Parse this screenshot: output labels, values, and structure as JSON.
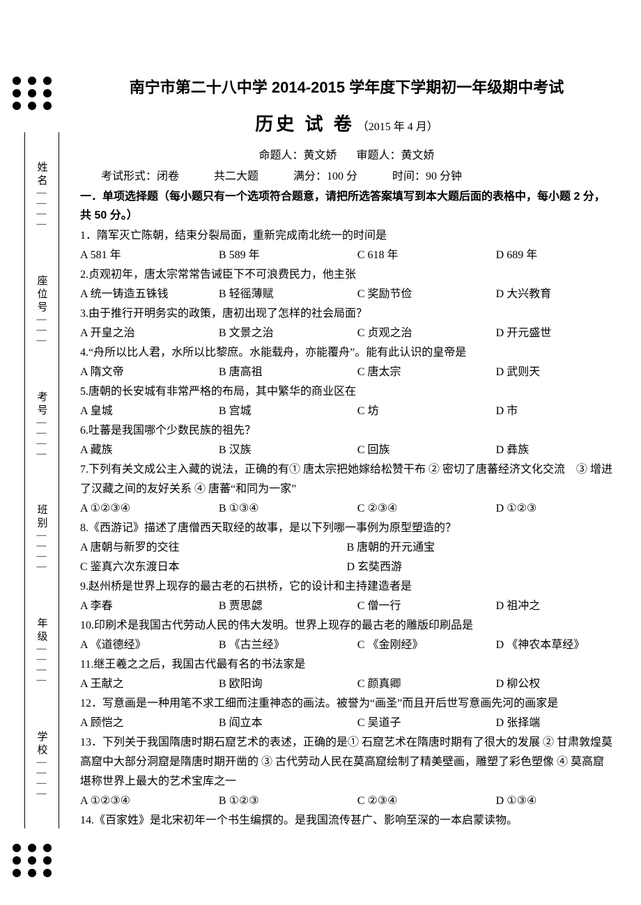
{
  "title": "南宁市第二十八中学 2014-2015 学年度下学期初一年级期中考试",
  "subtitle": "历史 试 卷",
  "subtitle_date": "（2015 年 4 月）",
  "authors": {
    "setter_label": "命题人：",
    "setter_name": "黄文娇",
    "reviewer_label": "审题人：",
    "reviewer_name": "黄文娇"
  },
  "exam_info": {
    "format": "考试形式：闭卷",
    "sections": "共二大题",
    "full_marks": "满分：100 分",
    "duration": "时间：90 分钟"
  },
  "section_header": "一．单项选择题（每小题只有一个选项符合题意，请把所选答案填写到本大题后面的表格中，每小题 2 分，共 50 分。）",
  "margin_labels": [
    "学校",
    "年级",
    "班别",
    "考号",
    "座位号",
    "姓名"
  ],
  "questions": [
    {
      "stem": "1．隋军灭亡陈朝，结束分裂局面，重新完成南北统一的时间是",
      "opts": [
        "A 581 年",
        "B 589 年",
        "C 618 年",
        "D 689 年"
      ]
    },
    {
      "stem": "2.贞观初年，唐太宗常常告诫臣下不可浪费民力，他主张",
      "opts": [
        "A 统一铸造五铢钱",
        "B 轻徭薄赋",
        "C 奖励节俭",
        "D 大兴教育"
      ]
    },
    {
      "stem": "3.由于推行开明务实的政策，唐初出现了怎样的社会局面？",
      "opts": [
        "A 开皇之治",
        "B 文景之治",
        "C 贞观之治",
        "D 开元盛世"
      ]
    },
    {
      "stem": "4.“舟所以比人君，水所以比黎庶。水能载舟，亦能覆舟”。能有此认识的皇帝是",
      "opts": [
        "A 隋文帝",
        "B 唐高祖",
        "C 唐太宗",
        "D 武则天"
      ]
    },
    {
      "stem": "5.唐朝的长安城有非常严格的布局，其中繁华的商业区在",
      "opts": [
        "A 皇城",
        "B 宫城",
        "C 坊",
        "D 市"
      ]
    },
    {
      "stem": "6.吐蕃是我国哪个少数民族的祖先？",
      "opts": [
        "A 藏族",
        "B 汉族",
        "C 回族",
        "D 彝族"
      ]
    },
    {
      "stem": "7.下列有关文成公主入藏的说法，正确的有① 唐太宗把她嫁给松赞干布 ② 密切了唐蕃经济文化交流　③ 增进了汉藏之间的友好关系 ④ 唐蕃“和同为一家”",
      "opts": [
        "A ①②③④",
        "B ①③④",
        "C ②③④",
        "D ①②③"
      ]
    },
    {
      "stem": "8.《西游记》描述了唐僧西天取经的故事，是以下列哪一事例为原型塑造的？",
      "opts2": [
        [
          "A 唐朝与新罗的交往",
          "B 唐朝的开元通宝"
        ],
        [
          "C 鉴真六次东渡日本",
          "D 玄奘西游"
        ]
      ]
    },
    {
      "stem": "9.赵州桥是世界上现存的最古老的石拱桥，它的设计和主持建造者是",
      "opts": [
        "A 李春",
        "B 贾思勰",
        "C 僧一行",
        "D 祖冲之"
      ]
    },
    {
      "stem": "10.印刷术是我国古代劳动人民的伟大发明。世界上现存的最古老的雕版印刷品是",
      "opts": [
        "A 《道德经》",
        "B 《古兰经》",
        "C 《金刚经》",
        "D 《神农本草经》"
      ]
    },
    {
      "stem": "11.继王羲之之后，我国古代最有名的书法家是",
      "opts": [
        "A 王献之",
        "B 欧阳询",
        "C 颜真卿",
        "D 柳公权"
      ]
    },
    {
      "stem": "12．写意画是一种用笔不求工细而注重神态的画法。被誉为“画圣”而且开后世写意画先河的画家是",
      "opts": [
        "A 顾恺之",
        "B 阎立本",
        "C 吴道子",
        "D 张择端"
      ]
    },
    {
      "stem": "13．下列关于我国隋唐时期石窟艺术的表述，正确的是① 石窟艺术在隋唐时期有了很大的发展 ② 甘肃敦煌莫高窟中大部分洞窟是隋唐时期开凿的 ③ 古代劳动人民在莫高窟绘制了精美壁画，雕塑了彩色塑像 ④ 莫高窟堪称世界上最大的艺术宝库之一",
      "opts": [
        "A ①②③④",
        "B ①②③",
        "C ②③④",
        "D ①③④"
      ]
    },
    {
      "stem": "14.《百家姓》是北宋初年一个书生编撰的。是我国流传甚广、影响至深的一本启蒙读物。"
    }
  ]
}
